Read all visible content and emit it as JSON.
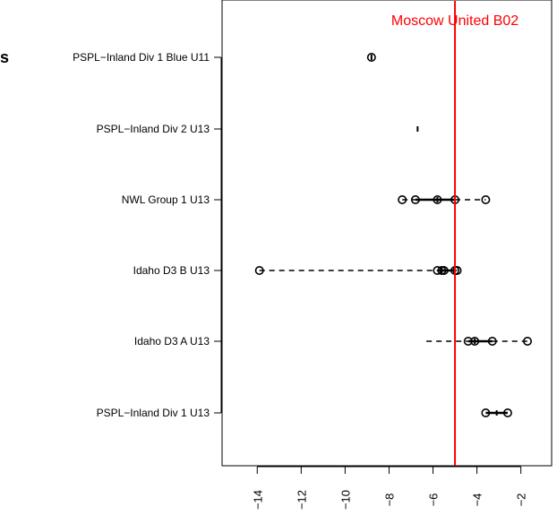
{
  "chart_data": {
    "type": "boxplot",
    "orientation": "horizontal",
    "title": "",
    "xlabel": "",
    "ylabel": "",
    "xlim": [
      -15.6,
      -0.6
    ],
    "x_ticks": [
      -14,
      -12,
      -10,
      -8,
      -6,
      -4,
      -2
    ],
    "grid": false,
    "reference_line": {
      "value": -5.0,
      "label": "Moscow United B02",
      "color": "#ff0000"
    },
    "groups": [
      {
        "name": "PSPL−Inland Div 1 Blue U11",
        "min": -8.8,
        "q1": -8.8,
        "median": -8.8,
        "q3": -8.8,
        "max": -8.8,
        "outliers": [
          -8.8
        ]
      },
      {
        "name": "PSPL−Inland Div 2 U13",
        "min": -6.7,
        "q1": -6.7,
        "median": -6.7,
        "q3": -6.7,
        "max": -6.7,
        "outliers": []
      },
      {
        "name": "NWL Group 1 U13",
        "min": -7.4,
        "q1": -6.8,
        "median": -5.8,
        "q3": -5.0,
        "max": -3.6,
        "outliers": [
          -7.4,
          -6.8,
          -5.8,
          -5.0,
          -3.6
        ]
      },
      {
        "name": "Idaho D3 B U13",
        "min": -13.9,
        "q1": -5.8,
        "median": -5.6,
        "q3": -5.0,
        "max": -4.9,
        "outliers": [
          -13.9,
          -5.8,
          -5.6,
          -5.5,
          -5.0,
          -4.9
        ]
      },
      {
        "name": "Idaho D3 A U13",
        "min": -6.3,
        "q1": -4.4,
        "median": -4.1,
        "q3": -3.3,
        "max": -1.7,
        "outliers": [
          -4.4,
          -4.1,
          -3.3,
          -1.7
        ]
      },
      {
        "name": "PSPL−Inland Div 1 U13",
        "min": -3.6,
        "q1": -3.6,
        "median": -3.1,
        "q3": -2.6,
        "max": -2.6,
        "outliers": [
          -3.6,
          -2.6
        ]
      }
    ],
    "truncated_left_label": "s",
    "colors": {
      "axis": "#000000",
      "reference": "#ff0000",
      "points": "#000000"
    }
  }
}
